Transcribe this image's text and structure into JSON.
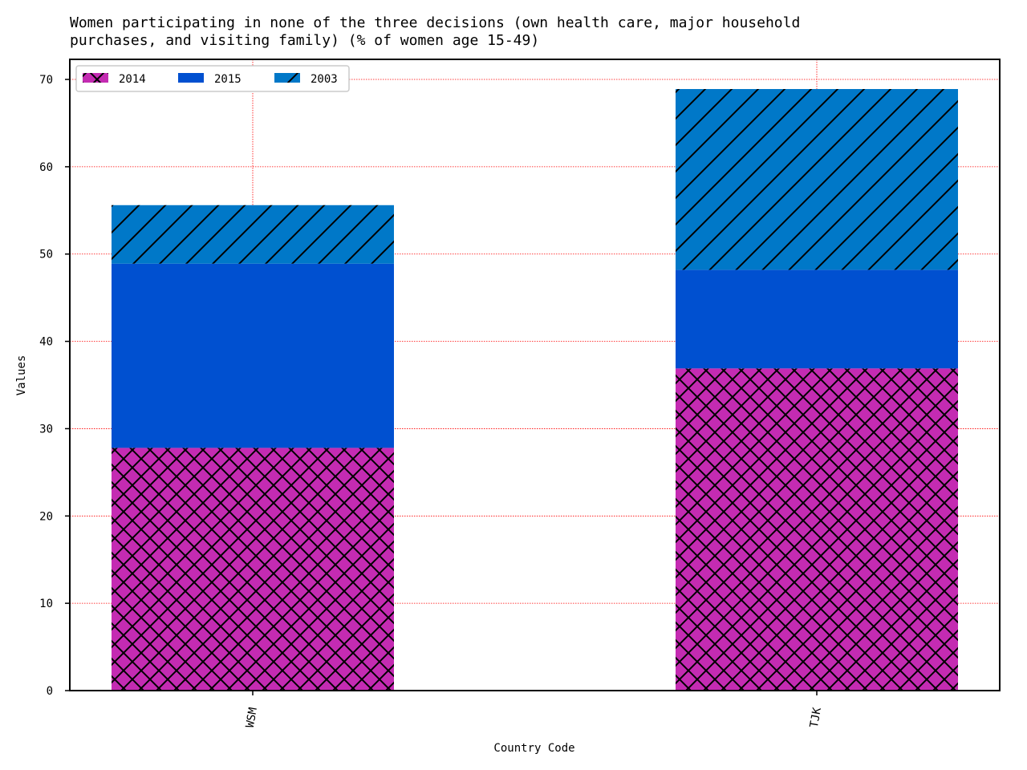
{
  "chart_data": {
    "type": "bar",
    "stacked": true,
    "title_lines": [
      "Women participating in none of the three decisions (own health care, major household",
      "purchases, and visiting family) (% of women age 15-49)"
    ],
    "xlabel": "Country Code",
    "ylabel": "Values",
    "categories": [
      "WSM",
      "TJK"
    ],
    "ylim": [
      0,
      72.3
    ],
    "yticks": [
      0,
      10,
      20,
      30,
      40,
      50,
      60,
      70
    ],
    "grid": true,
    "legend_position": "top-left",
    "series": [
      {
        "name": "2014",
        "values": [
          27.8,
          36.9
        ],
        "color": "#c42bb2",
        "hatch": "crosshatch"
      },
      {
        "name": "2015",
        "values": [
          21.1,
          11.3
        ],
        "color": "#0050d0",
        "hatch": "none"
      },
      {
        "name": "2003",
        "values": [
          6.7,
          20.7
        ],
        "color": "#0078c8",
        "hatch": "diagonal"
      }
    ]
  }
}
